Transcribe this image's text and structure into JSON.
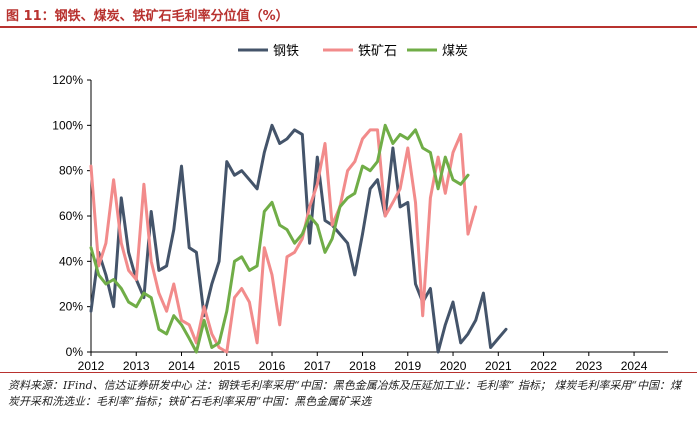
{
  "header": {
    "title": "图 11：钢铁、煤炭、铁矿石毛利率分位值（%）"
  },
  "footer": {
    "source": "资料来源：IFind、信达证券研发中心 注：钢铁毛利率采用“中国：黑色金属冶炼及压延加工业：毛利率” 指标； 煤炭毛利率采用“中国：煤炭开采和洗选业：毛利率”指标；铁矿石毛利率采用“中国：黑色金属矿采选"
  },
  "colors": {
    "title": "#b8322f",
    "steel": "#44546a",
    "iron_ore": "#f28b8b",
    "coal": "#70ad47",
    "axis": "#000000"
  },
  "chart_data": {
    "type": "line",
    "title": "",
    "xlabel": "",
    "ylabel": "",
    "xlim": [
      2012,
      2024.75
    ],
    "ylim": [
      0,
      120
    ],
    "yticks": [
      0,
      20,
      40,
      60,
      80,
      100,
      120
    ],
    "ytick_labels": [
      "0%",
      "20%",
      "40%",
      "60%",
      "80%",
      "100%",
      "120%"
    ],
    "xticks": [
      2012,
      2013,
      2014,
      2015,
      2016,
      2017,
      2018,
      2019,
      2020,
      2021,
      2022,
      2023,
      2024
    ],
    "xtick_labels": [
      "2012",
      "2013",
      "2014",
      "2015",
      "2016",
      "2017",
      "2018",
      "2019",
      "2020",
      "2021",
      "2022",
      "2023",
      "2024"
    ],
    "grid": false,
    "legend_position": "top-center",
    "series": [
      {
        "name": "钢铁",
        "color": "#44546a",
        "x": [
          2012.0,
          2012.17,
          2012.33,
          2012.5,
          2012.67,
          2012.83,
          2013.0,
          2013.17,
          2013.33,
          2013.5,
          2013.67,
          2013.83,
          2014.0,
          2014.17,
          2014.33,
          2014.5,
          2014.67,
          2014.83,
          2015.0,
          2015.17,
          2015.33,
          2015.5,
          2015.67,
          2015.83,
          2016.0,
          2016.17,
          2016.33,
          2016.5,
          2016.67,
          2016.83,
          2017.0,
          2017.17,
          2017.33,
          2017.5,
          2017.67,
          2017.83,
          2018.0,
          2018.17,
          2018.33,
          2018.5,
          2018.67,
          2018.83,
          2019.0,
          2019.17,
          2019.33,
          2019.5,
          2019.67,
          2019.83,
          2020.0,
          2020.17,
          2020.33,
          2020.5,
          2020.67,
          2020.83,
          2021.0,
          2021.17,
          2021.33,
          2021.5,
          2021.67,
          2021.83,
          2022.0,
          2022.17,
          2022.33,
          2022.5,
          2022.67,
          2022.83,
          2023.0,
          2023.17,
          2023.33,
          2023.5,
          2023.67,
          2023.83,
          2024.0,
          2024.17,
          2024.33,
          2024.5
        ],
        "values": [
          18,
          44,
          34,
          20,
          68,
          44,
          32,
          24,
          62,
          36,
          38,
          54,
          82,
          46,
          44,
          16,
          30,
          40,
          84,
          78,
          80,
          76,
          72,
          88,
          100,
          92,
          94,
          98,
          96,
          48,
          86,
          58,
          56,
          52,
          48,
          34,
          52,
          72,
          76,
          60,
          90,
          64,
          66,
          30,
          22,
          28,
          0,
          12,
          22,
          4,
          8,
          14,
          26,
          2,
          6,
          10,
          null,
          null,
          null,
          null,
          null,
          null,
          null,
          null,
          null,
          null,
          null,
          null,
          null,
          null,
          null,
          null,
          null,
          null,
          null,
          null
        ]
      },
      {
        "name": "铁矿石",
        "color": "#f28b8b",
        "x": [
          2012.0,
          2012.17,
          2012.33,
          2012.5,
          2012.67,
          2012.83,
          2013.0,
          2013.17,
          2013.33,
          2013.5,
          2013.67,
          2013.83,
          2014.0,
          2014.17,
          2014.33,
          2014.5,
          2014.67,
          2014.83,
          2015.0,
          2015.17,
          2015.33,
          2015.5,
          2015.67,
          2015.83,
          2016.0,
          2016.17,
          2016.33,
          2016.5,
          2016.67,
          2016.83,
          2017.0,
          2017.17,
          2017.33,
          2017.5,
          2017.67,
          2017.83,
          2018.0,
          2018.17,
          2018.33,
          2018.5,
          2018.67,
          2018.83,
          2019.0,
          2019.17,
          2019.33,
          2019.5,
          2019.67,
          2019.83,
          2020.0,
          2020.17,
          2020.33,
          2020.5,
          2020.67,
          2020.83,
          2021.0,
          2021.17,
          2021.33,
          2021.5,
          2021.67,
          2021.83,
          2022.0,
          2022.17,
          2022.33,
          2022.5,
          2022.67,
          2022.83,
          2023.0,
          2023.17,
          2023.33,
          2023.5,
          2023.67,
          2023.83,
          2024.0,
          2024.17,
          2024.33,
          2024.5
        ],
        "values": [
          82,
          38,
          48,
          76,
          48,
          36,
          32,
          74,
          40,
          26,
          18,
          30,
          14,
          12,
          4,
          20,
          8,
          2,
          0,
          24,
          28,
          22,
          4,
          46,
          34,
          12,
          42,
          44,
          50,
          64,
          74,
          92,
          56,
          64,
          80,
          84,
          94,
          98,
          98,
          60,
          66,
          72,
          90,
          66,
          16,
          68,
          86,
          70,
          88,
          96,
          52,
          64,
          null,
          null,
          null,
          null,
          null,
          null,
          null,
          null,
          null,
          null,
          null,
          null,
          null,
          null,
          null,
          null,
          null,
          null,
          null,
          null,
          null,
          null,
          null,
          null
        ]
      },
      {
        "name": "煤炭",
        "color": "#70ad47",
        "x": [
          2012.0,
          2012.17,
          2012.33,
          2012.5,
          2012.67,
          2012.83,
          2013.0,
          2013.17,
          2013.33,
          2013.5,
          2013.67,
          2013.83,
          2014.0,
          2014.17,
          2014.33,
          2014.5,
          2014.67,
          2014.83,
          2015.0,
          2015.17,
          2015.33,
          2015.5,
          2015.67,
          2015.83,
          2016.0,
          2016.17,
          2016.33,
          2016.5,
          2016.67,
          2016.83,
          2017.0,
          2017.17,
          2017.33,
          2017.5,
          2017.67,
          2017.83,
          2018.0,
          2018.17,
          2018.33,
          2018.5,
          2018.67,
          2018.83,
          2019.0,
          2019.17,
          2019.33,
          2019.5,
          2019.67,
          2019.83,
          2020.0,
          2020.17,
          2020.33,
          2020.5,
          2020.67,
          2020.83,
          2021.0,
          2021.17,
          2021.33,
          2021.5,
          2021.67,
          2021.83,
          2022.0,
          2022.17,
          2022.33,
          2022.5,
          2022.67,
          2022.83,
          2023.0,
          2023.17,
          2023.33,
          2023.5,
          2023.67,
          2023.83,
          2024.0,
          2024.17,
          2024.33,
          2024.5
        ],
        "values": [
          46,
          34,
          30,
          32,
          28,
          22,
          20,
          26,
          24,
          10,
          8,
          16,
          12,
          6,
          0,
          14,
          2,
          4,
          18,
          40,
          42,
          36,
          38,
          62,
          66,
          56,
          54,
          48,
          52,
          60,
          56,
          44,
          50,
          64,
          68,
          70,
          82,
          80,
          84,
          100,
          92,
          96,
          94,
          98,
          90,
          88,
          72,
          86,
          76,
          74,
          78,
          null,
          null,
          null,
          null,
          null,
          null,
          null,
          null,
          null,
          null,
          null,
          null,
          null,
          null,
          null,
          null,
          null,
          null,
          null,
          null,
          null,
          null,
          null,
          null,
          null
        ]
      }
    ]
  }
}
